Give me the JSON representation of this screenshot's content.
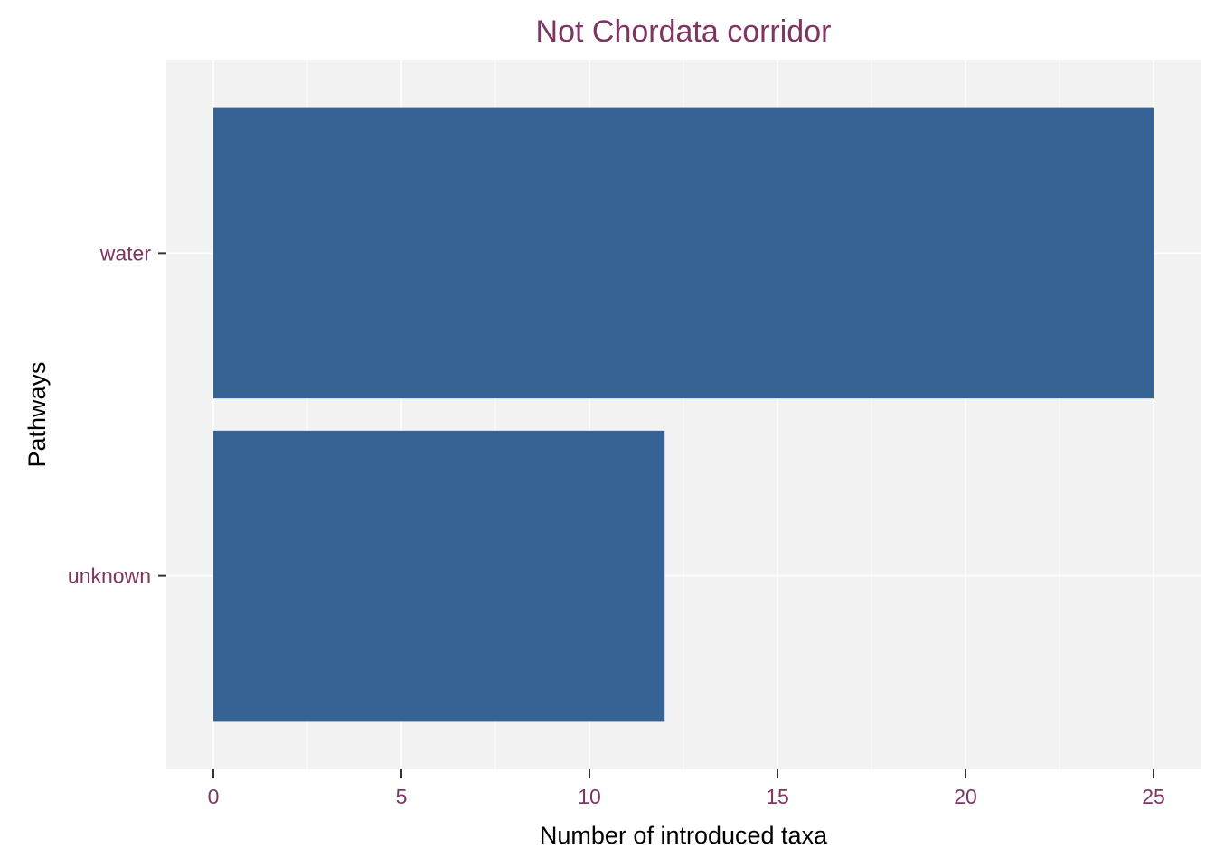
{
  "chart_data": {
    "type": "bar",
    "orientation": "horizontal",
    "title": "Not Chordata corridor",
    "xlabel": "Number of introduced taxa",
    "ylabel": "Pathways",
    "categories": [
      "water",
      "unknown"
    ],
    "values": [
      25,
      12
    ],
    "xlim": [
      -1.25,
      26.25
    ],
    "xticks": [
      0,
      5,
      10,
      15,
      20,
      25
    ],
    "grid": true,
    "legend": "none",
    "colors": {
      "bar": "#366294",
      "panel": "#f2f2f2",
      "grid": "#ffffff",
      "label_text": "#7f3563",
      "axis_title": "#000000"
    }
  }
}
